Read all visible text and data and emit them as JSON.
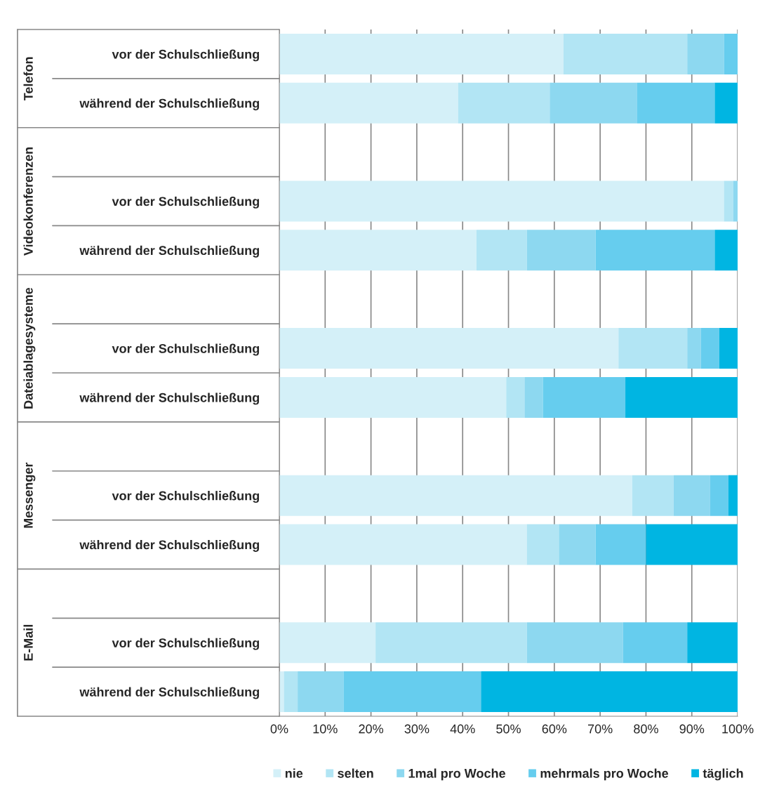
{
  "chart_data": {
    "type": "bar",
    "orientation": "horizontal",
    "stacked": true,
    "categories": [
      "vor der Schulschließung",
      "während der Schulschließung",
      null,
      "vor der Schulschließung",
      "während der Schulschließung",
      null,
      "vor der Schulschließung",
      "während der Schulschließung",
      null,
      "vor der Schulschließung",
      "während der Schulschließung",
      null,
      "vor der Schulschließung",
      "während der Schulschließung"
    ],
    "series": [
      {
        "name": "nie",
        "color": "#d4f0f8",
        "values": [
          62,
          39,
          null,
          97,
          43,
          null,
          74,
          49.5,
          null,
          77,
          54,
          null,
          21,
          1
        ]
      },
      {
        "name": "selten",
        "color": "#b2e5f4",
        "values": [
          27,
          20,
          null,
          2,
          11,
          null,
          15,
          4,
          null,
          9,
          7,
          null,
          33,
          3
        ]
      },
      {
        "name": "1mal pro Woche",
        "color": "#8dd8f0",
        "values": [
          8,
          19,
          null,
          1,
          15,
          null,
          3,
          4,
          null,
          8,
          8,
          null,
          21,
          10
        ]
      },
      {
        "name": "mehrmals pro Woche",
        "color": "#66cdee",
        "values": [
          3,
          17,
          null,
          0,
          26,
          null,
          4,
          18,
          null,
          4,
          11,
          null,
          14,
          30
        ]
      },
      {
        "name": "täglich",
        "color": "#00b5e2",
        "values": [
          0,
          5,
          null,
          0,
          5,
          null,
          4,
          24.5,
          null,
          2,
          20,
          null,
          11,
          56
        ]
      }
    ],
    "xlim": [
      0,
      100
    ],
    "xticks": [
      {
        "value": 0,
        "label": "0%"
      },
      {
        "value": 10,
        "label": "10%"
      },
      {
        "value": 20,
        "label": "20%"
      },
      {
        "value": 30,
        "label": "30%"
      },
      {
        "value": 40,
        "label": "40%"
      },
      {
        "value": 50,
        "label": "50%"
      },
      {
        "value": 60,
        "label": "60%"
      },
      {
        "value": 70,
        "label": "70%"
      },
      {
        "value": 80,
        "label": "80%"
      },
      {
        "value": 90,
        "label": "90%"
      },
      {
        "value": 100,
        "label": "100%"
      }
    ],
    "annotations": [
      "Telefon",
      "Videokonferenzen",
      "Dateiablagesysteme",
      "Messenger",
      "E-Mail"
    ],
    "grid": "x",
    "legend": "bottom"
  }
}
